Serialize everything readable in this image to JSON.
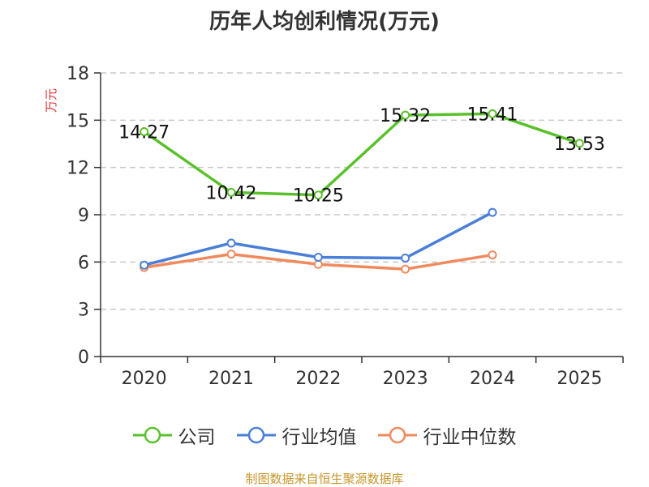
{
  "title": "历年人均创利情况(万元)",
  "y_unit_label": "万元",
  "source_note": "制图数据来自恒生聚源数据库",
  "chart_data": {
    "type": "line",
    "title": "历年人均创利情况(万元)",
    "xlabel": "",
    "ylabel": "万元",
    "categories": [
      "2020",
      "2021",
      "2022",
      "2023",
      "2024",
      "2025"
    ],
    "ylim": [
      0,
      18
    ],
    "yticks": [
      0,
      3,
      6,
      9,
      12,
      15,
      18
    ],
    "grid": true,
    "legend_position": "bottom",
    "series": [
      {
        "name": "公司",
        "color": "#5ac12d",
        "values": [
          14.27,
          10.42,
          10.25,
          15.32,
          15.41,
          13.53
        ],
        "show_labels": true
      },
      {
        "name": "行业均值",
        "color": "#4a7fd8",
        "values": [
          5.8,
          7.2,
          6.3,
          6.25,
          9.15,
          null
        ],
        "show_labels": false
      },
      {
        "name": "行业中位数",
        "color": "#f08a5d",
        "values": [
          5.65,
          6.5,
          5.85,
          5.55,
          6.45,
          null
        ],
        "show_labels": false
      }
    ]
  }
}
